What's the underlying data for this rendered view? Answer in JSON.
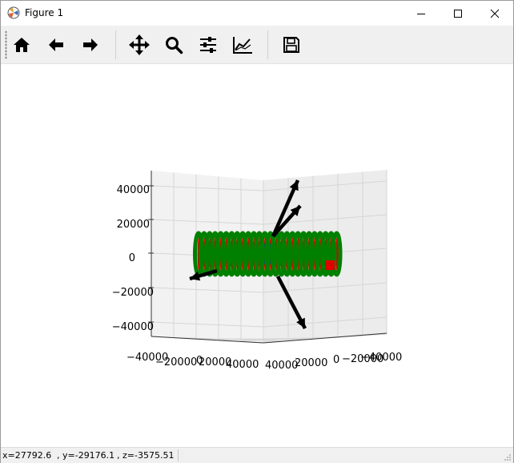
{
  "window": {
    "title": "Figure 1"
  },
  "toolbar": {
    "tools": [
      {
        "name": "home",
        "icon": "home-icon"
      },
      {
        "name": "back",
        "icon": "arrow-left-icon"
      },
      {
        "name": "forward",
        "icon": "arrow-right-icon"
      },
      {
        "name": "pan",
        "icon": "move-icon"
      },
      {
        "name": "zoom",
        "icon": "magnifier-icon"
      },
      {
        "name": "configure-subplots",
        "icon": "sliders-icon"
      },
      {
        "name": "edit-axes",
        "icon": "line-chart-icon"
      },
      {
        "name": "save",
        "icon": "floppy-disk-icon"
      }
    ]
  },
  "plot": {
    "zticks": [
      "40000",
      "20000",
      "0",
      "−20000",
      "−40000"
    ],
    "xticks": [
      "−40000",
      "−20000",
      "0",
      "20000",
      "40000"
    ],
    "yticks": [
      "40000",
      "20000",
      "0",
      "−20000",
      "−40000"
    ],
    "colors": {
      "rings": "#008000",
      "inner": "#e00000",
      "core": "#1f3a93",
      "arrows": "#000000",
      "pane": "#f2f2f2",
      "grid": "#d6d6d6"
    }
  },
  "status": {
    "x": "x=27792.6",
    "y": ", y=-29176.1",
    "z": ", z=-3575.51"
  }
}
